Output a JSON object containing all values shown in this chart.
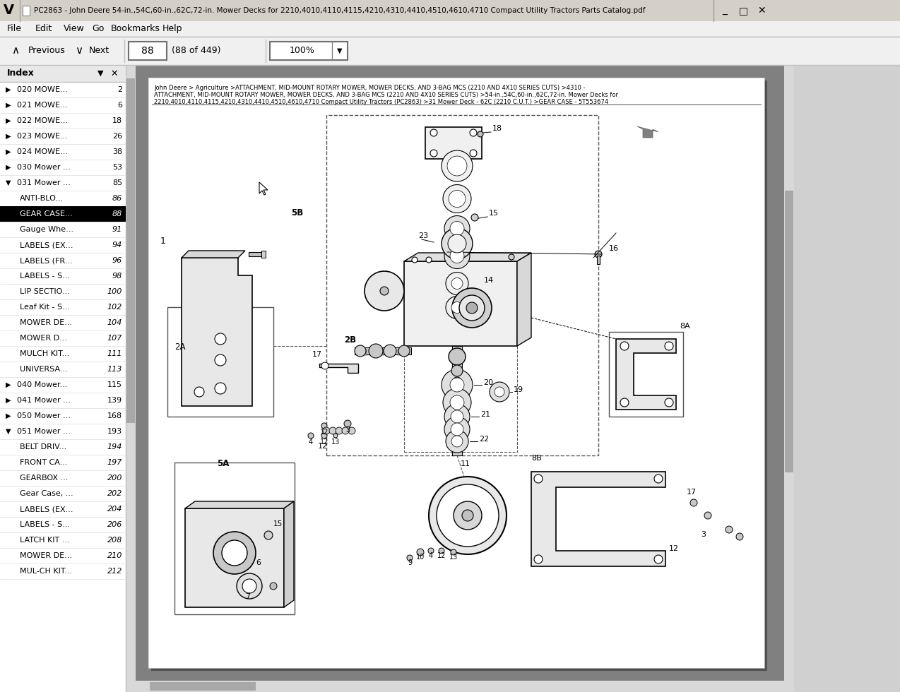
{
  "title_bar": "PC2863 - John Deere 54-in.,54C,60-in.,62C,72-in. Mower Decks for 2210,4010,4110,4115,4210,4310,4410,4510,4610,4710 Compact Utility Tractors Parts Catalog.pdf",
  "menu_items": [
    "File",
    "Edit",
    "View",
    "Go",
    "Bookmarks",
    "Help"
  ],
  "nav_page": "88",
  "nav_total": "(88 of 449)",
  "nav_zoom": "100%",
  "breadcrumb_line1": "John Deere > Agriculture >ATTACHMENT, MID-MOUNT ROTARY MOWER, MOWER DECKS, AND 3-BAG MCS (2210 AND 4X10 SERIES CUTS) >4310 -",
  "breadcrumb_line2": "ATTACHMENT, MID-MOUNT ROTARY MOWER, MOWER DECKS, AND 3-BAG MCS (2210 AND 4X10 SERIES CUTS) >54-in.,54C,60-in.,62C,72-in. Mower Decks for",
  "breadcrumb_line3": "2210,4010,4110,4115,4210,4310,4410,4510,4610,4710 Compact Utility Tractors (PC2863) >31 Mower Deck - 62C (2210 C.U.T.) >GEAR CASE - 5T553674",
  "index_items": [
    {
      "label": "020 MOWE...",
      "page": "2",
      "level": 1,
      "collapsed": true
    },
    {
      "label": "021 MOWE...",
      "page": "6",
      "level": 1,
      "collapsed": true
    },
    {
      "label": "022 MOWE...",
      "page": "18",
      "level": 1,
      "collapsed": true
    },
    {
      "label": "023 MOWE...",
      "page": "26",
      "level": 1,
      "collapsed": true
    },
    {
      "label": "024 MOWE...",
      "page": "38",
      "level": 1,
      "collapsed": true
    },
    {
      "label": "030 Mower ...",
      "page": "53",
      "level": 1,
      "collapsed": true
    },
    {
      "label": "031 Mower ...",
      "page": "85",
      "level": 1,
      "collapsed": false
    },
    {
      "label": "ANTI-BLO...",
      "page": "86",
      "level": 2
    },
    {
      "label": "GEAR CASE...",
      "page": "88",
      "level": 2,
      "selected": true
    },
    {
      "label": "Gauge Whe...",
      "page": "91",
      "level": 2
    },
    {
      "label": "LABELS (EX...",
      "page": "94",
      "level": 2
    },
    {
      "label": "LABELS (FR...",
      "page": "96",
      "level": 2
    },
    {
      "label": "LABELS - S...",
      "page": "98",
      "level": 2
    },
    {
      "label": "LIP SECTIO...",
      "page": "100",
      "level": 2
    },
    {
      "label": "Leaf Kit - S...",
      "page": "102",
      "level": 2
    },
    {
      "label": "MOWER DE...",
      "page": "104",
      "level": 2
    },
    {
      "label": "MOWER D...",
      "page": "107",
      "level": 2
    },
    {
      "label": "MULCH KIT...",
      "page": "111",
      "level": 2
    },
    {
      "label": "UNIVERSA...",
      "page": "113",
      "level": 2
    },
    {
      "label": "040 Mower...",
      "page": "115",
      "level": 1,
      "collapsed": true
    },
    {
      "label": "041 Mower ...",
      "page": "139",
      "level": 1,
      "collapsed": true
    },
    {
      "label": "050 Mower ...",
      "page": "168",
      "level": 1,
      "collapsed": true
    },
    {
      "label": "051 Mower ...",
      "page": "193",
      "level": 1,
      "collapsed": false
    },
    {
      "label": "BELT DRIV...",
      "page": "194",
      "level": 2
    },
    {
      "label": "FRONT CA...",
      "page": "197",
      "level": 2
    },
    {
      "label": "GEARBOX ...",
      "page": "200",
      "level": 2
    },
    {
      "label": "Gear Case, ...",
      "page": "202",
      "level": 2
    },
    {
      "label": "LABELS (EX...",
      "page": "204",
      "level": 2
    },
    {
      "label": "LABELS - S...",
      "page": "206",
      "level": 2
    },
    {
      "label": "LATCH KIT ...",
      "page": "208",
      "level": 2
    },
    {
      "label": "MOWER DE...",
      "page": "210",
      "level": 2
    },
    {
      "label": "MUL-CH KIT...",
      "page": "212",
      "level": 2
    }
  ],
  "bg_color": "#c8c8c8",
  "titlebar_bg": "#d4d0c8",
  "sidebar_bg": "#ffffff",
  "content_bg": "#ffffff",
  "selected_bg": "#000000",
  "selected_fg": "#ffffff"
}
